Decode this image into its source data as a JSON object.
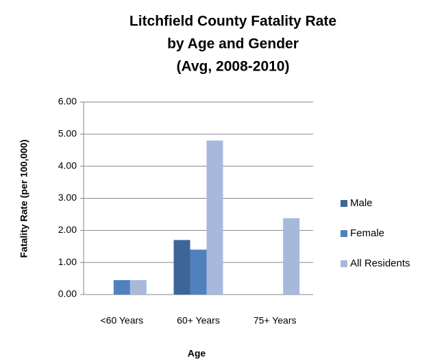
{
  "chart_data": {
    "type": "bar",
    "title": [
      "Litchfield County Fatality Rate",
      "by Age and Gender",
      "(Avg, 2008-2010)"
    ],
    "xlabel": "Age",
    "ylabel": "Fatality Rate (per 100,000)",
    "categories": [
      "<60 Years",
      "60+ Years",
      "75+ Years"
    ],
    "series": [
      {
        "name": "Male",
        "color": "#3e6597",
        "values": [
          0,
          1.7,
          0
        ]
      },
      {
        "name": "Female",
        "color": "#4f81bd",
        "values": [
          0.45,
          1.4,
          0
        ]
      },
      {
        "name": "All Residents",
        "color": "#a7b9db",
        "values": [
          0.45,
          4.8,
          2.38
        ]
      }
    ],
    "ylim": [
      0,
      6
    ],
    "yticks": [
      {
        "value": 0,
        "label": "0.00"
      },
      {
        "value": 1,
        "label": "1.00"
      },
      {
        "value": 2,
        "label": "2.00"
      },
      {
        "value": 3,
        "label": "3.00"
      },
      {
        "value": 4,
        "label": "4.00"
      },
      {
        "value": 5,
        "label": "5.00"
      },
      {
        "value": 6,
        "label": "6.00"
      }
    ],
    "grid": true,
    "legend": "right"
  }
}
